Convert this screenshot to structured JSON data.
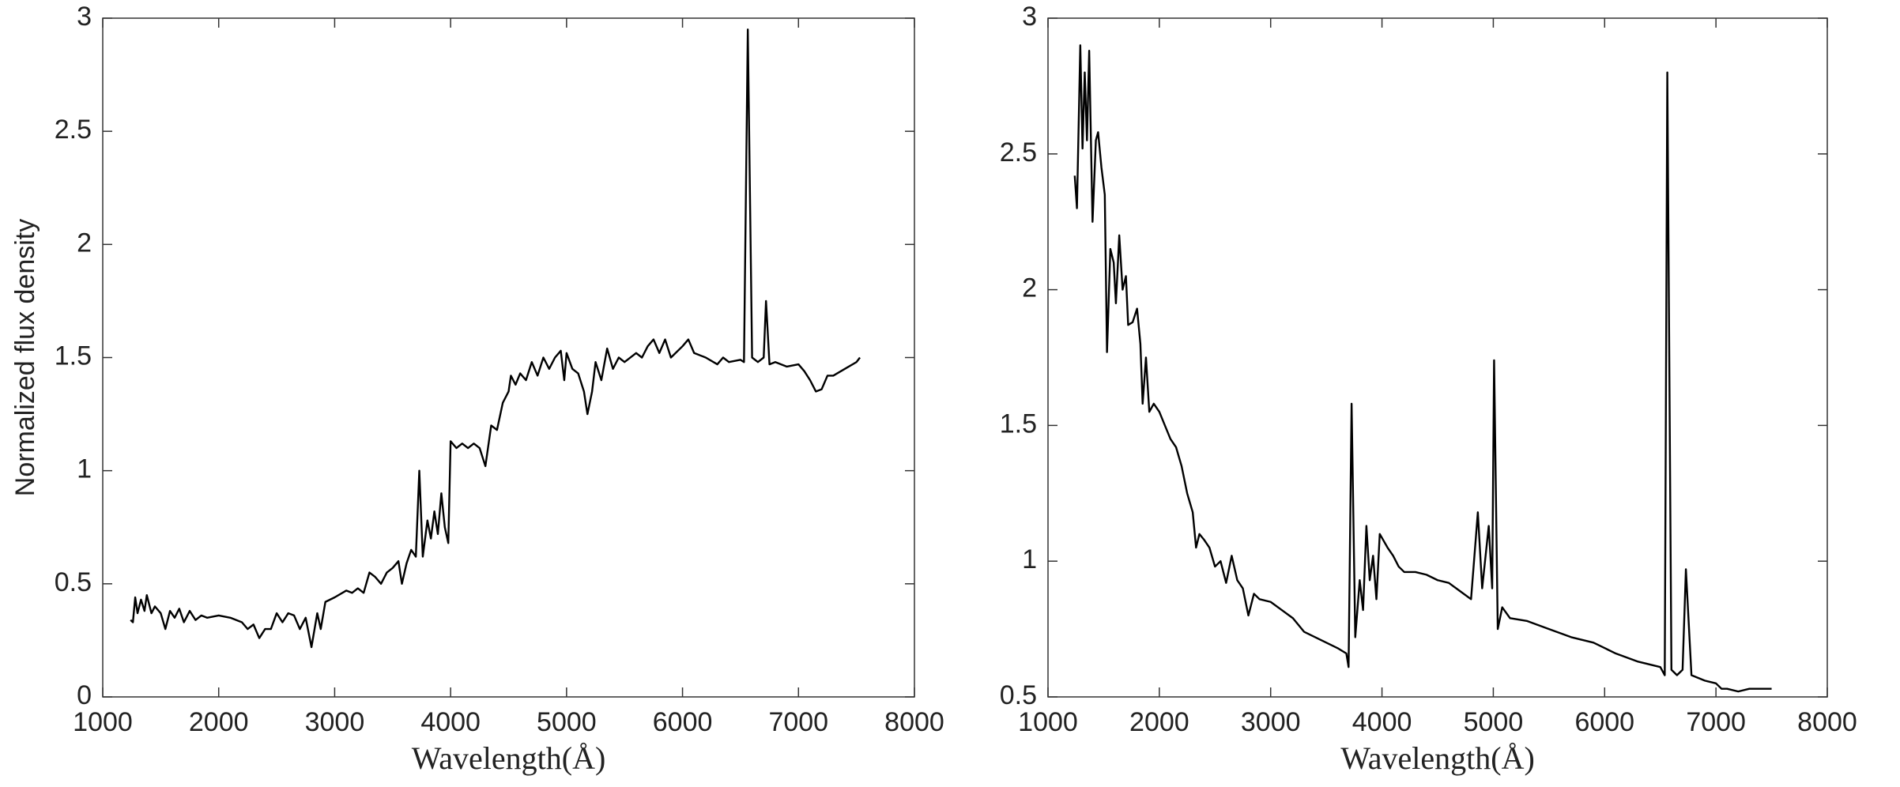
{
  "chart_data": [
    {
      "type": "line",
      "color": "#000000",
      "xlabel": "Wavelength(Å)",
      "ylabel": "Normalized flux density",
      "xlim": [
        1000,
        8000
      ],
      "xticks": [
        1000,
        2000,
        3000,
        4000,
        5000,
        6000,
        7000,
        8000
      ],
      "ylim": [
        0,
        3
      ],
      "yticks": [
        0,
        0.5,
        1,
        1.5,
        2,
        2.5,
        3
      ],
      "x": [
        1240,
        1260,
        1280,
        1300,
        1330,
        1360,
        1380,
        1420,
        1450,
        1500,
        1540,
        1580,
        1620,
        1660,
        1700,
        1750,
        1800,
        1850,
        1900,
        2000,
        2100,
        2200,
        2250,
        2300,
        2350,
        2400,
        2450,
        2500,
        2550,
        2600,
        2650,
        2700,
        2750,
        2800,
        2850,
        2880,
        2920,
        3000,
        3100,
        3150,
        3200,
        3250,
        3300,
        3350,
        3400,
        3450,
        3500,
        3550,
        3580,
        3620,
        3660,
        3700,
        3730,
        3760,
        3800,
        3830,
        3860,
        3890,
        3920,
        3950,
        3980,
        4000,
        4050,
        4100,
        4150,
        4200,
        4250,
        4300,
        4350,
        4400,
        4450,
        4500,
        4520,
        4560,
        4600,
        4650,
        4700,
        4750,
        4800,
        4850,
        4900,
        4950,
        4980,
        5000,
        5050,
        5100,
        5150,
        5180,
        5220,
        5250,
        5300,
        5350,
        5400,
        5450,
        5500,
        5600,
        5650,
        5700,
        5750,
        5800,
        5850,
        5900,
        6000,
        6050,
        6100,
        6200,
        6300,
        6350,
        6400,
        6500,
        6530,
        6563,
        6600,
        6650,
        6700,
        6720,
        6750,
        6800,
        6900,
        7000,
        7050,
        7100,
        7150,
        7200,
        7250,
        7300,
        7400,
        7500,
        7530
      ],
      "values": [
        0.34,
        0.33,
        0.44,
        0.37,
        0.43,
        0.38,
        0.45,
        0.37,
        0.4,
        0.37,
        0.3,
        0.38,
        0.35,
        0.39,
        0.33,
        0.38,
        0.34,
        0.36,
        0.35,
        0.36,
        0.35,
        0.33,
        0.3,
        0.32,
        0.26,
        0.3,
        0.3,
        0.37,
        0.33,
        0.37,
        0.36,
        0.3,
        0.35,
        0.22,
        0.37,
        0.3,
        0.42,
        0.44,
        0.47,
        0.46,
        0.48,
        0.46,
        0.55,
        0.53,
        0.5,
        0.55,
        0.57,
        0.6,
        0.5,
        0.59,
        0.65,
        0.62,
        1.0,
        0.62,
        0.78,
        0.7,
        0.82,
        0.72,
        0.9,
        0.75,
        0.68,
        1.13,
        1.1,
        1.12,
        1.1,
        1.12,
        1.1,
        1.02,
        1.2,
        1.18,
        1.3,
        1.35,
        1.42,
        1.38,
        1.43,
        1.4,
        1.48,
        1.42,
        1.5,
        1.45,
        1.5,
        1.53,
        1.4,
        1.52,
        1.45,
        1.43,
        1.35,
        1.25,
        1.35,
        1.48,
        1.4,
        1.54,
        1.45,
        1.5,
        1.48,
        1.52,
        1.5,
        1.55,
        1.58,
        1.52,
        1.58,
        1.5,
        1.55,
        1.58,
        1.52,
        1.5,
        1.47,
        1.5,
        1.48,
        1.49,
        1.48,
        2.95,
        1.5,
        1.48,
        1.5,
        1.75,
        1.47,
        1.48,
        1.46,
        1.47,
        1.44,
        1.4,
        1.35,
        1.36,
        1.42,
        1.42,
        1.45,
        1.48,
        1.5
      ]
    },
    {
      "type": "line",
      "color": "#000000",
      "xlabel": "Wavelength(Å)",
      "xlim": [
        1000,
        8000
      ],
      "xticks": [
        1000,
        2000,
        3000,
        4000,
        5000,
        6000,
        7000,
        8000
      ],
      "ylim": [
        0.5,
        3
      ],
      "yticks": [
        0.5,
        1,
        1.5,
        2,
        2.5,
        3
      ],
      "x": [
        1240,
        1260,
        1290,
        1310,
        1330,
        1350,
        1370,
        1400,
        1430,
        1450,
        1480,
        1510,
        1530,
        1560,
        1590,
        1610,
        1640,
        1670,
        1700,
        1720,
        1760,
        1800,
        1830,
        1850,
        1880,
        1910,
        1950,
        2000,
        2050,
        2100,
        2150,
        2200,
        2250,
        2300,
        2330,
        2360,
        2400,
        2450,
        2500,
        2550,
        2600,
        2650,
        2700,
        2750,
        2800,
        2850,
        2900,
        3000,
        3100,
        3200,
        3300,
        3400,
        3500,
        3600,
        3680,
        3700,
        3727,
        3760,
        3800,
        3830,
        3860,
        3890,
        3920,
        3950,
        3980,
        4050,
        4100,
        4150,
        4200,
        4300,
        4400,
        4500,
        4600,
        4700,
        4800,
        4861,
        4900,
        4959,
        4990,
        5007,
        5040,
        5080,
        5150,
        5300,
        5500,
        5700,
        5900,
        6100,
        6300,
        6500,
        6540,
        6563,
        6600,
        6650,
        6700,
        6730,
        6780,
        6900,
        7000,
        7050,
        7100,
        7200,
        7300,
        7500
      ],
      "values": [
        2.42,
        2.3,
        2.9,
        2.52,
        2.8,
        2.55,
        2.88,
        2.25,
        2.55,
        2.58,
        2.45,
        2.35,
        1.77,
        2.15,
        2.1,
        1.95,
        2.2,
        2.0,
        2.05,
        1.87,
        1.88,
        1.93,
        1.8,
        1.58,
        1.75,
        1.55,
        1.58,
        1.55,
        1.5,
        1.45,
        1.42,
        1.35,
        1.25,
        1.18,
        1.05,
        1.1,
        1.08,
        1.05,
        0.98,
        1.0,
        0.92,
        1.02,
        0.93,
        0.9,
        0.8,
        0.88,
        0.86,
        0.85,
        0.82,
        0.79,
        0.74,
        0.72,
        0.7,
        0.68,
        0.66,
        0.61,
        1.58,
        0.72,
        0.93,
        0.82,
        1.13,
        0.93,
        1.02,
        0.86,
        1.1,
        1.05,
        1.02,
        0.98,
        0.96,
        0.96,
        0.95,
        0.93,
        0.92,
        0.89,
        0.86,
        1.18,
        0.9,
        1.13,
        0.9,
        1.74,
        0.75,
        0.83,
        0.79,
        0.78,
        0.75,
        0.72,
        0.7,
        0.66,
        0.63,
        0.61,
        0.58,
        2.8,
        0.6,
        0.58,
        0.6,
        0.97,
        0.58,
        0.56,
        0.55,
        0.53,
        0.53,
        0.52,
        0.53,
        0.53
      ]
    }
  ]
}
